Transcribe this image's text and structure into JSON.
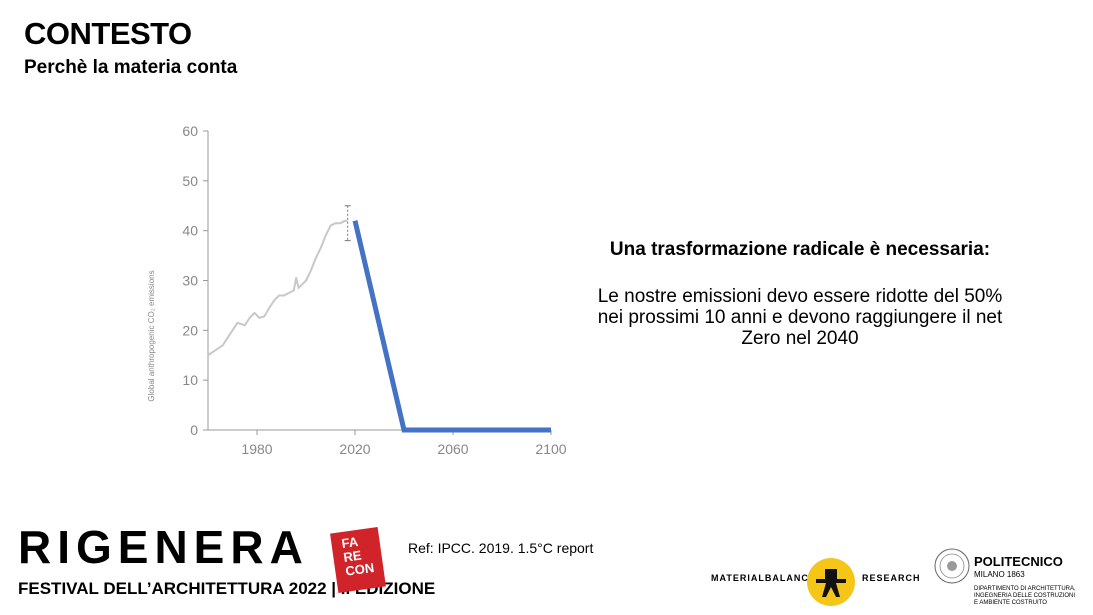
{
  "header": {
    "title": "CONTESTO",
    "subtitle": "Perchè la materia conta"
  },
  "message": {
    "headline": "Una trasformazione radicale è necessaria:",
    "line1": "Le nostre emissioni devo essere ridotte del 50%",
    "line2": "nei prossimi 10 anni e devono raggiungere il net",
    "line3": "Zero nel 2040"
  },
  "reference": "Ref: IPCC. 2019. 1.5°C report",
  "footer": {
    "logo_main": "RIGENERA",
    "festival": "FESTIVAL DELL’ARCHITETTURA 2022 | II EDIZIONE",
    "badge": [
      "FA",
      "RE",
      "CON"
    ],
    "materialbalance_left": "MATERIALBALANCE",
    "materialbalance_right": "RESEARCH",
    "poli_name": "POLITECNICO",
    "poli_city": "MILANO 1863",
    "poli_dept": [
      "DIPARTIMENTO DI ARCHITETTURA,",
      "INGEGNERIA DELLE COSTRUZIONI",
      "E AMBIENTE COSTRUITO"
    ]
  },
  "chart_data": {
    "type": "line",
    "title": "",
    "xlabel": "",
    "ylabel": "Global anthropogenic CO₂ emissions",
    "xlim": [
      1960,
      2100
    ],
    "ylim": [
      0,
      60
    ],
    "x_ticks": [
      1980,
      2020,
      2060,
      2100
    ],
    "y_ticks": [
      0,
      10,
      20,
      30,
      40,
      50,
      60
    ],
    "grid": false,
    "series": [
      {
        "color": "#c8c8c8",
        "points": [
          [
            1960,
            15
          ],
          [
            1963,
            16
          ],
          [
            1966,
            17
          ],
          [
            1968,
            18.5
          ],
          [
            1970,
            20
          ],
          [
            1972,
            21.5
          ],
          [
            1974,
            21.2
          ],
          [
            1975,
            21
          ],
          [
            1977,
            22.5
          ],
          [
            1979,
            23.5
          ],
          [
            1981,
            22.5
          ],
          [
            1983,
            22.8
          ],
          [
            1985,
            24.5
          ],
          [
            1987,
            26
          ],
          [
            1989,
            27
          ],
          [
            1991,
            27
          ],
          [
            1993,
            27.5
          ],
          [
            1995,
            28
          ],
          [
            1996,
            30.5
          ],
          [
            1997,
            28.5
          ],
          [
            1998,
            29
          ],
          [
            2000,
            30
          ],
          [
            2002,
            32
          ],
          [
            2004,
            34.5
          ],
          [
            2006,
            36.5
          ],
          [
            2008,
            39
          ],
          [
            2009,
            40
          ],
          [
            2010,
            41
          ],
          [
            2012,
            41.5
          ],
          [
            2014,
            41.5
          ],
          [
            2016,
            42
          ],
          [
            2017,
            42
          ]
        ]
      },
      {
        "color": "#4472c4",
        "points": [
          [
            2020,
            42
          ],
          [
            2040,
            0
          ],
          [
            2100,
            0
          ]
        ]
      }
    ],
    "error_bar": {
      "x": 2017,
      "low": 38,
      "high": 45
    }
  }
}
